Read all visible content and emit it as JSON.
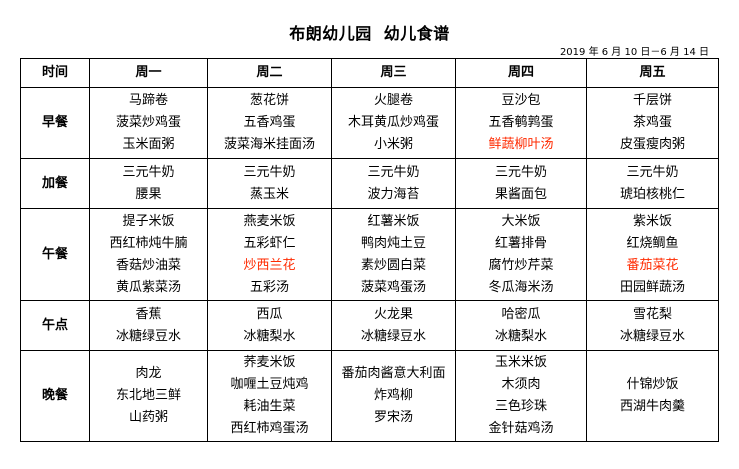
{
  "title": [
    "布朗幼儿园",
    "幼儿食谱"
  ],
  "date_range": "2019 年 6 月 10 日－6 月 14 日",
  "highlight_color": "#ff2a00",
  "headers": [
    "时间",
    "周一",
    "周二",
    "周三",
    "周四",
    "周五"
  ],
  "rows": [
    {
      "label": "早餐",
      "cells": [
        [
          {
            "t": "马蹄卷"
          },
          {
            "t": "菠菜炒鸡蛋"
          },
          {
            "t": "玉米面粥"
          }
        ],
        [
          {
            "t": "葱花饼"
          },
          {
            "t": "五香鸡蛋"
          },
          {
            "t": "菠菜海米挂面汤"
          }
        ],
        [
          {
            "t": "火腿卷"
          },
          {
            "t": "木耳黄瓜炒鸡蛋"
          },
          {
            "t": "小米粥"
          }
        ],
        [
          {
            "t": "豆沙包"
          },
          {
            "t": "五香鹌鹑蛋"
          },
          {
            "t": "鲜蔬柳叶汤",
            "red": true
          }
        ],
        [
          {
            "t": "千层饼"
          },
          {
            "t": "茶鸡蛋"
          },
          {
            "t": "皮蛋瘦肉粥"
          }
        ]
      ]
    },
    {
      "label": "加餐",
      "cells": [
        [
          {
            "t": "三元牛奶"
          },
          {
            "t": "腰果"
          }
        ],
        [
          {
            "t": "三元牛奶"
          },
          {
            "t": "蒸玉米"
          }
        ],
        [
          {
            "t": "三元牛奶"
          },
          {
            "t": "波力海苔"
          }
        ],
        [
          {
            "t": "三元牛奶"
          },
          {
            "t": "果酱面包"
          }
        ],
        [
          {
            "t": "三元牛奶"
          },
          {
            "t": "琥珀核桃仁"
          }
        ]
      ]
    },
    {
      "label": "午餐",
      "cells": [
        [
          {
            "t": "提子米饭"
          },
          {
            "t": "西红柿炖牛腩"
          },
          {
            "t": "香菇炒油菜"
          },
          {
            "t": "黄瓜紫菜汤"
          }
        ],
        [
          {
            "t": "燕麦米饭"
          },
          {
            "t": "五彩虾仁"
          },
          {
            "t": "炒西兰花",
            "red": true
          },
          {
            "t": "五彩汤"
          }
        ],
        [
          {
            "t": "红薯米饭"
          },
          {
            "t": "鸭肉炖土豆"
          },
          {
            "t": "素炒圆白菜"
          },
          {
            "t": "菠菜鸡蛋汤"
          }
        ],
        [
          {
            "t": "大米饭"
          },
          {
            "t": "红薯排骨"
          },
          {
            "t": "腐竹炒芹菜"
          },
          {
            "t": "冬瓜海米汤"
          }
        ],
        [
          {
            "t": "紫米饭"
          },
          {
            "t": "红烧鲷鱼"
          },
          {
            "t": "番茄菜花",
            "red": true
          },
          {
            "t": "田园鲜蔬汤"
          }
        ]
      ]
    },
    {
      "label": "午点",
      "cells": [
        [
          {
            "t": "香蕉"
          },
          {
            "t": "冰糖绿豆水"
          }
        ],
        [
          {
            "t": "西瓜"
          },
          {
            "t": "冰糖梨水"
          }
        ],
        [
          {
            "t": "火龙果"
          },
          {
            "t": "冰糖绿豆水"
          }
        ],
        [
          {
            "t": "哈密瓜"
          },
          {
            "t": "冰糖梨水"
          }
        ],
        [
          {
            "t": "雪花梨"
          },
          {
            "t": "冰糖绿豆水"
          }
        ]
      ]
    },
    {
      "label": "晚餐",
      "cells": [
        [
          {
            "t": "肉龙"
          },
          {
            "t": "东北地三鲜"
          },
          {
            "t": "山药粥"
          }
        ],
        [
          {
            "t": "荞麦米饭"
          },
          {
            "t": "咖喱土豆炖鸡"
          },
          {
            "t": "耗油生菜"
          },
          {
            "t": "西红柿鸡蛋汤"
          }
        ],
        [
          {
            "t": "番茄肉酱意大利面"
          },
          {
            "t": "炸鸡柳"
          },
          {
            "t": "罗宋汤"
          }
        ],
        [
          {
            "t": "玉米米饭"
          },
          {
            "t": "木须肉"
          },
          {
            "t": "三色珍珠"
          },
          {
            "t": "金针菇鸡汤"
          }
        ],
        [
          {
            "t": "什锦炒饭"
          },
          {
            "t": "西湖牛肉羹"
          }
        ]
      ]
    }
  ]
}
